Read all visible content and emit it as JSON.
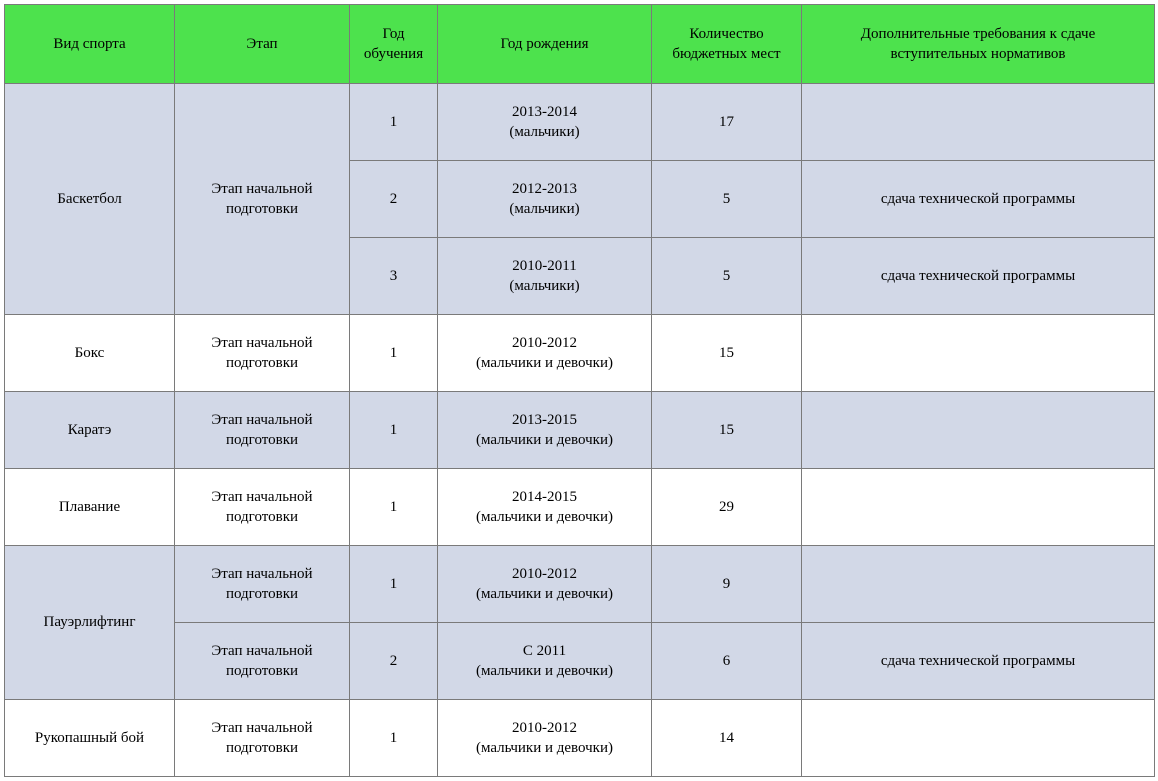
{
  "table": {
    "header_bg": "#4de24d",
    "shade_bg": "#d2d8e7",
    "border_color": "#7a7a7a",
    "columns": {
      "sport": "Вид спорта",
      "stage": "Этап",
      "study_year_l1": "Год",
      "study_year_l2": "обучения",
      "birth_year": "Год рождения",
      "places_l1": "Количество",
      "places_l2": "бюджетных мест",
      "req_l1": "Дополнительные требования к сдаче",
      "req_l2": "вступительных нормативов"
    },
    "groups": [
      {
        "sport": "Баскетбол",
        "stage": "Этап начальной подготовки",
        "shade": true,
        "rows": [
          {
            "study_year": "1",
            "birth_l1": "2013-2014",
            "birth_l2": "(мальчики)",
            "places": "17",
            "req": ""
          },
          {
            "study_year": "2",
            "birth_l1": "2012-2013",
            "birth_l2": "(мальчики)",
            "places": "5",
            "req": "сдача технической программы"
          },
          {
            "study_year": "3",
            "birth_l1": "2010-2011",
            "birth_l2": "(мальчики)",
            "places": "5",
            "req": "сдача технической программы"
          }
        ]
      },
      {
        "sport": "Бокс",
        "stage": "Этап начальной подготовки",
        "shade": false,
        "rows": [
          {
            "study_year": "1",
            "birth_l1": "2010-2012",
            "birth_l2": "(мальчики и девочки)",
            "places": "15",
            "req": ""
          }
        ]
      },
      {
        "sport": "Каратэ",
        "stage": "Этап начальной подготовки",
        "shade": true,
        "rows": [
          {
            "study_year": "1",
            "birth_l1": "2013-2015",
            "birth_l2": "(мальчики и девочки)",
            "places": "15",
            "req": ""
          }
        ]
      },
      {
        "sport": "Плавание",
        "stage": "Этап начальной подготовки",
        "shade": false,
        "rows": [
          {
            "study_year": "1",
            "birth_l1": "2014-2015",
            "birth_l2": "(мальчики и девочки)",
            "places": "29",
            "req": ""
          }
        ]
      },
      {
        "sport": "Пауэрлифтинг",
        "stage": null,
        "shade": true,
        "rows": [
          {
            "stage": "Этап начальной подготовки",
            "study_year": "1",
            "birth_l1": "2010-2012",
            "birth_l2": "(мальчики и девочки)",
            "places": "9",
            "req": ""
          },
          {
            "stage": "Этап начальной подготовки",
            "study_year": "2",
            "birth_l1": "С 2011",
            "birth_l2": "(мальчики и девочки)",
            "places": "6",
            "req": "сдача технической программы"
          }
        ]
      },
      {
        "sport": "Рукопашный бой",
        "stage": "Этап начальной подготовки",
        "shade": false,
        "rows": [
          {
            "study_year": "1",
            "birth_l1": "2010-2012",
            "birth_l2": "(мальчики и девочки)",
            "places": "14",
            "req": ""
          }
        ]
      }
    ]
  }
}
